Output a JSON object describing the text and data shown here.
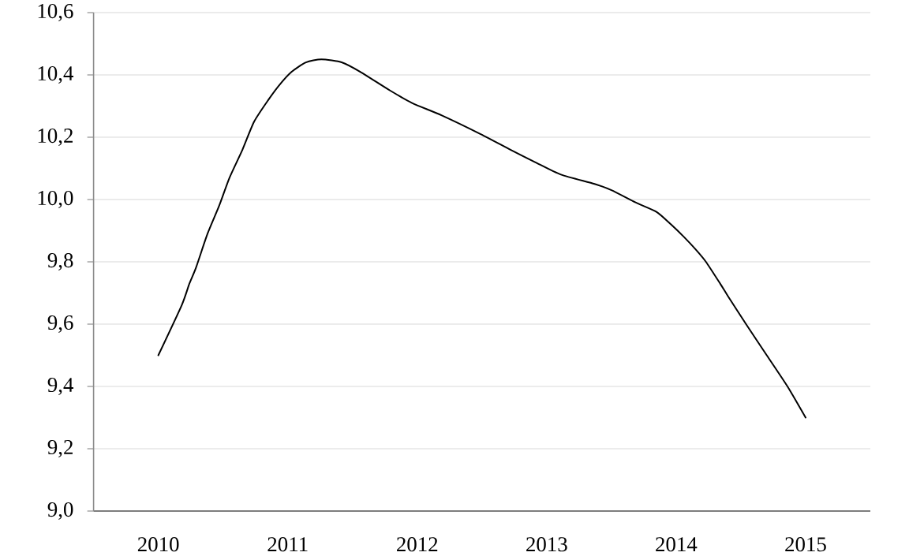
{
  "chart_data": {
    "type": "line",
    "x": [
      2010.0,
      2010.18,
      2010.24,
      2010.29,
      2010.38,
      2010.47,
      2010.55,
      2010.65,
      2010.74,
      2010.85,
      2010.94,
      2011.03,
      2011.14,
      2011.26,
      2011.42,
      2011.56,
      2011.79,
      2011.96,
      2012.19,
      2012.49,
      2012.72,
      2012.91,
      2013.11,
      2013.37,
      2013.5,
      2013.69,
      2013.85,
      2013.96,
      2014.06,
      2014.15,
      2014.23,
      2014.34,
      2014.4,
      2014.54,
      2014.7,
      2014.86,
      2015.0
    ],
    "values": [
      9.5,
      9.66,
      9.73,
      9.78,
      9.89,
      9.98,
      10.07,
      10.16,
      10.25,
      10.32,
      10.37,
      10.41,
      10.44,
      10.45,
      10.44,
      10.41,
      10.35,
      10.31,
      10.27,
      10.21,
      10.16,
      10.12,
      10.08,
      10.05,
      10.03,
      9.99,
      9.96,
      9.92,
      9.88,
      9.84,
      9.8,
      9.73,
      9.69,
      9.6,
      9.5,
      9.4,
      9.3
    ],
    "color": "#000000",
    "xlim": [
      2009.5,
      2015.5
    ],
    "xticks": [
      2010,
      2011,
      2012,
      2013,
      2014,
      2015
    ],
    "ylim": [
      9.0,
      10.6
    ],
    "yticks": [
      {
        "value": 9.0,
        "label": "9,0"
      },
      {
        "value": 9.2,
        "label": "9,2"
      },
      {
        "value": 9.4,
        "label": "9,4"
      },
      {
        "value": 9.6,
        "label": "9,6"
      },
      {
        "value": 9.8,
        "label": "9,8"
      },
      {
        "value": 10.0,
        "label": "10,0"
      },
      {
        "value": 10.2,
        "label": "10,2"
      },
      {
        "value": 10.4,
        "label": "10,4"
      },
      {
        "value": 10.6,
        "label": "10,6"
      }
    ],
    "grid": "y"
  }
}
